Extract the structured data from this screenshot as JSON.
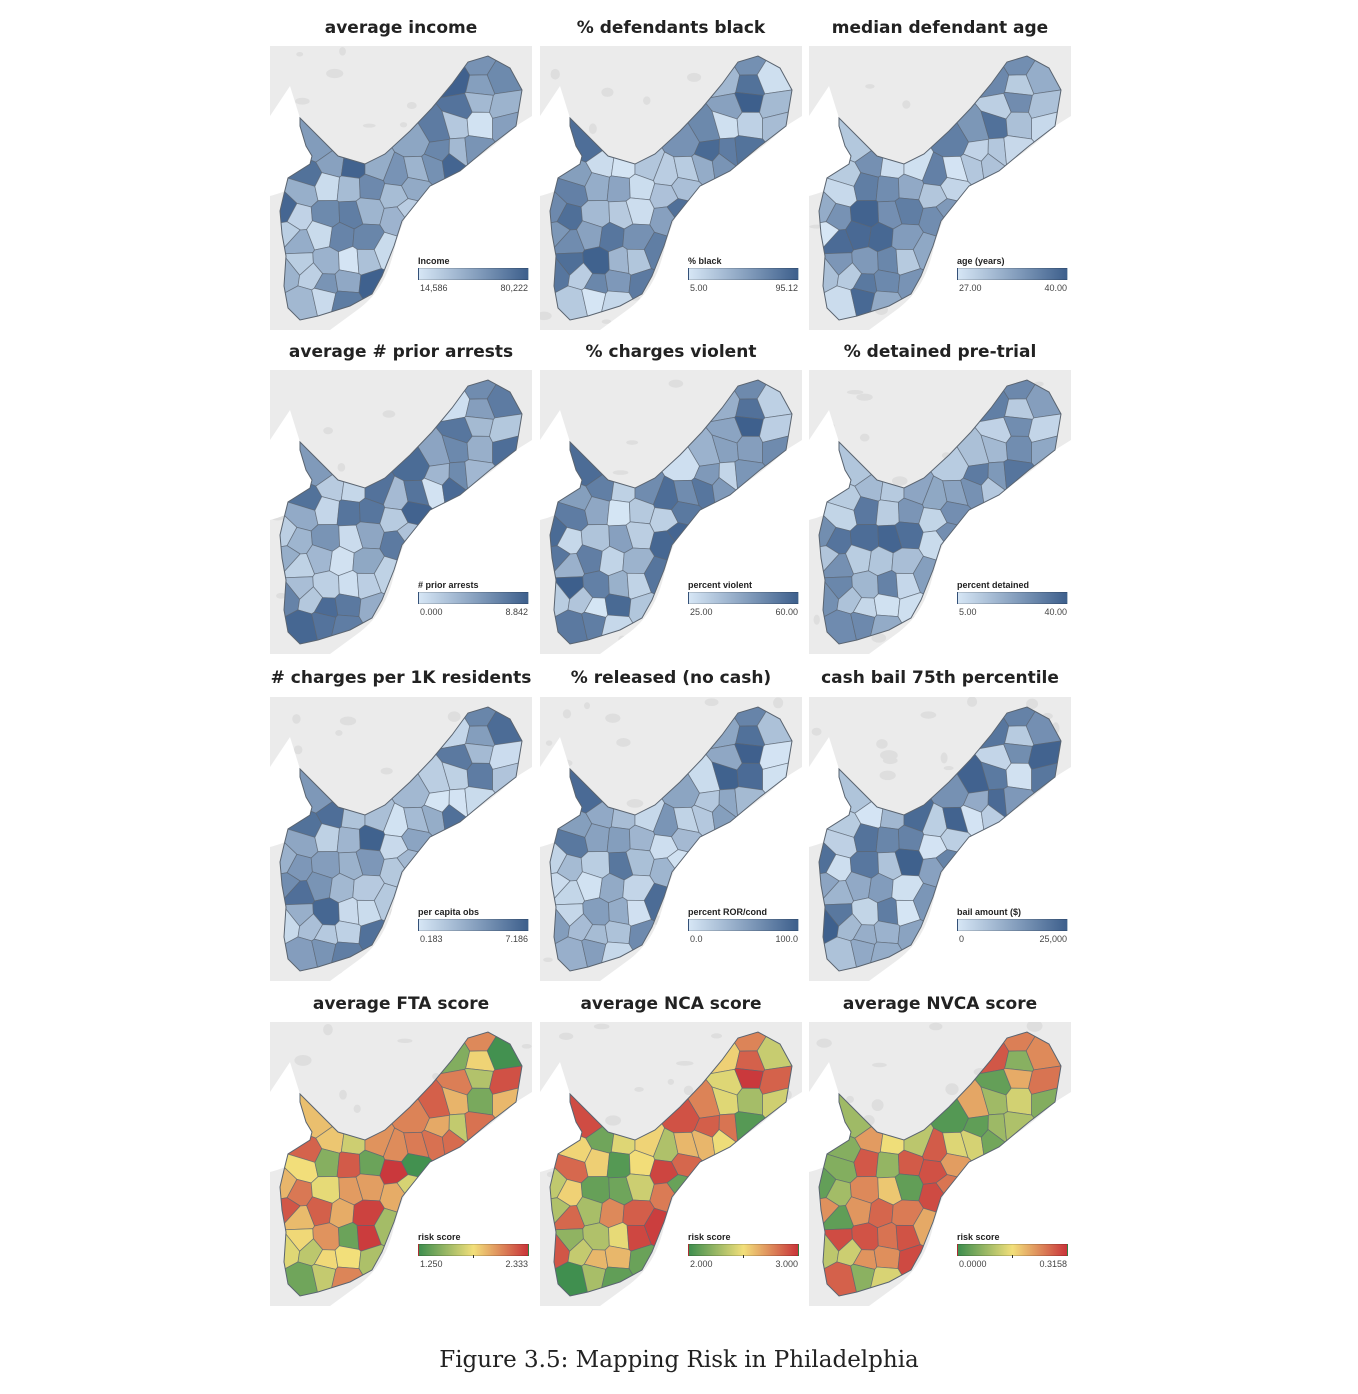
{
  "figure": {
    "caption": "Figure 3.5: Mapping Risk in Philadelphia",
    "panels": [
      {
        "title": "average income",
        "legend_title": "Income",
        "min_label": "14,586",
        "max_label": "80,222",
        "palette": "blue",
        "icon": "philadelphia-map"
      },
      {
        "title": "% defendants black",
        "legend_title": "% black",
        "min_label": "5.00",
        "max_label": "95.12",
        "palette": "blue",
        "icon": "philadelphia-map"
      },
      {
        "title": "median defendant age",
        "legend_title": "age (years)",
        "min_label": "27.00",
        "max_label": "40.00",
        "palette": "blue",
        "icon": "philadelphia-map"
      },
      {
        "title": "average # prior arrests",
        "legend_title": "# prior arrests",
        "min_label": "0.000",
        "max_label": "8.842",
        "palette": "blue",
        "icon": "philadelphia-map"
      },
      {
        "title": "% charges violent",
        "legend_title": "percent violent",
        "min_label": "25.00",
        "max_label": "60.00",
        "palette": "blue",
        "icon": "philadelphia-map"
      },
      {
        "title": "% detained pre-trial",
        "legend_title": "percent detained",
        "min_label": "5.00",
        "max_label": "40.00",
        "palette": "blue",
        "icon": "philadelphia-map"
      },
      {
        "title": "# charges per 1K residents",
        "legend_title": "per capita obs",
        "min_label": "0.183",
        "max_label": "7.186",
        "palette": "blue",
        "icon": "philadelphia-map"
      },
      {
        "title": "% released (no cash)",
        "legend_title": "percent  ROR/cond",
        "min_label": "0.0",
        "max_label": "100.0",
        "palette": "blue",
        "icon": "philadelphia-map"
      },
      {
        "title": "cash bail 75th percentile",
        "legend_title": "bail amount ($)",
        "min_label": "0",
        "max_label": "25,000",
        "palette": "blue",
        "icon": "philadelphia-map"
      },
      {
        "title": "average FTA score",
        "legend_title": "risk score",
        "min_label": "1.250",
        "max_label": "2.333",
        "palette": "risk",
        "icon": "philadelphia-map"
      },
      {
        "title": "average NCA score",
        "legend_title": "risk score",
        "min_label": "2.000",
        "max_label": "3.000",
        "palette": "risk",
        "icon": "philadelphia-map"
      },
      {
        "title": "average NVCA score",
        "legend_title": "risk score",
        "min_label": "0.0000",
        "max_label": "0.3158",
        "palette": "risk",
        "icon": "philadelphia-map"
      }
    ],
    "colors": {
      "background": "#ebebeb",
      "water": "#ffffff",
      "border": "#5a6470",
      "blue_low": "#d6e6f5",
      "blue_high": "#3d5f8c",
      "risk_low": "#3f8f4f",
      "risk_mid": "#f2df7a",
      "risk_high": "#c9343a"
    }
  }
}
